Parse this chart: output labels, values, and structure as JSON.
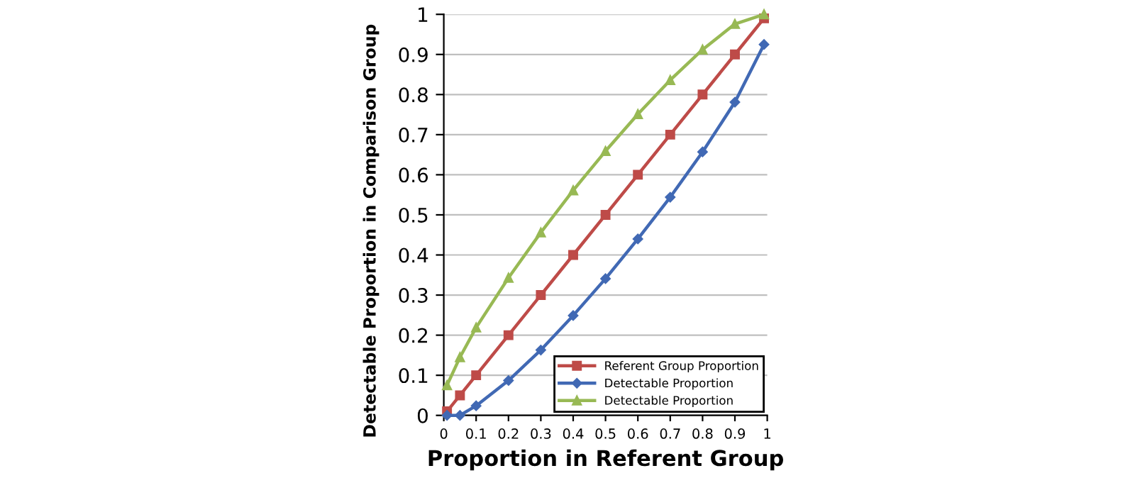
{
  "chart_data": {
    "type": "line",
    "xlabel": "Proportion in Referent Group",
    "ylabel": "Detectable Proportion in Comparison Group",
    "x": [
      0.01,
      0.05,
      0.1,
      0.2,
      0.3,
      0.4,
      0.5,
      0.6,
      0.7,
      0.8,
      0.9,
      0.99
    ],
    "series": [
      {
        "name": "Referent Group Proportion",
        "color": "#be4b48",
        "marker": "square",
        "values": [
          0.01,
          0.05,
          0.1,
          0.2,
          0.3,
          0.4,
          0.5,
          0.6,
          0.7,
          0.8,
          0.9,
          0.99
        ]
      },
      {
        "name": "Detectable Proportion",
        "color": "#4169b4",
        "marker": "diamond",
        "values": [
          0,
          0,
          0.024,
          0.087,
          0.163,
          0.249,
          0.341,
          0.44,
          0.544,
          0.657,
          0.781,
          0.925
        ]
      },
      {
        "name": "Detectable Proportion",
        "color": "#98b954",
        "marker": "triangle",
        "values": [
          0.075,
          0.145,
          0.219,
          0.343,
          0.456,
          0.561,
          0.659,
          0.751,
          0.836,
          0.912,
          0.976,
          1.0
        ]
      }
    ],
    "xlim": [
      0,
      1
    ],
    "ylim": [
      0,
      1
    ],
    "xticks": [
      0,
      0.1,
      0.2,
      0.3,
      0.4,
      0.5,
      0.6,
      0.7,
      0.8,
      0.9,
      1
    ],
    "yticks": [
      0,
      0.1,
      0.2,
      0.3,
      0.4,
      0.5,
      0.6,
      0.7,
      0.8,
      0.9,
      1
    ],
    "grid": "y",
    "legend": "bottom right",
    "line_style": "solid"
  }
}
